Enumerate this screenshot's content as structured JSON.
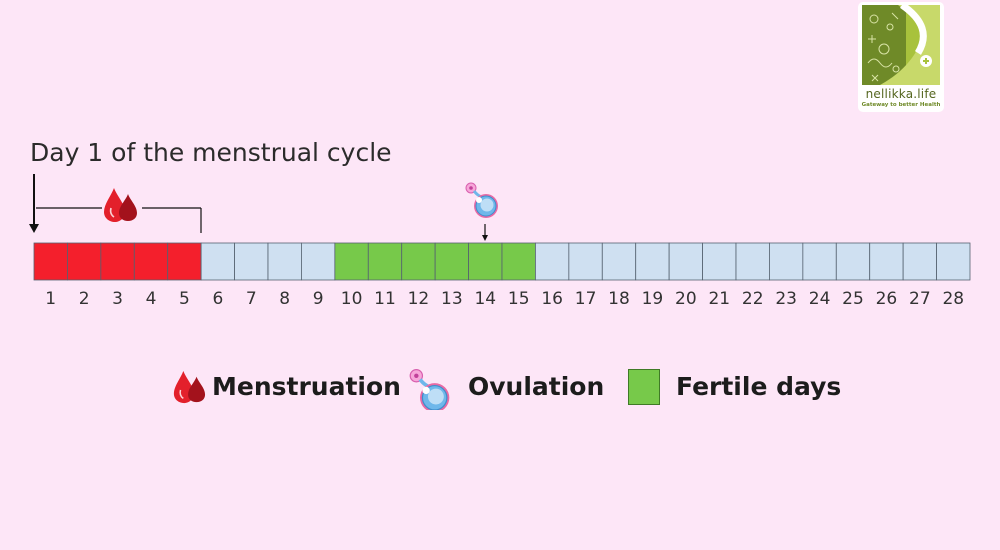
{
  "title": "Day 1 of the menstrual cycle",
  "logo": {
    "name": "nellikka.life",
    "tagline": "Gateway to better Health"
  },
  "cycle": {
    "days": [
      "1",
      "2",
      "3",
      "4",
      "5",
      "6",
      "7",
      "8",
      "9",
      "10",
      "11",
      "12",
      "13",
      "14",
      "15",
      "16",
      "17",
      "18",
      "19",
      "20",
      "21",
      "22",
      "23",
      "24",
      "25",
      "26",
      "27",
      "28"
    ],
    "menstruation_days": [
      1,
      5
    ],
    "fertile_days": [
      10,
      15
    ],
    "ovulation_day": 14
  },
  "legend": {
    "menstruation": "Menstruation",
    "ovulation": "Ovulation",
    "fertile": "Fertile days"
  },
  "colors": {
    "background": "#fde6f7",
    "menstruation": "#f41f2c",
    "other": "#cfe0f1",
    "fertile": "#77c94a",
    "logo_green": "#6f8a28"
  },
  "icons": {
    "menstruation": "blood-drop-icon",
    "ovulation": "ovum-icon",
    "fertile": "green-square-icon"
  }
}
